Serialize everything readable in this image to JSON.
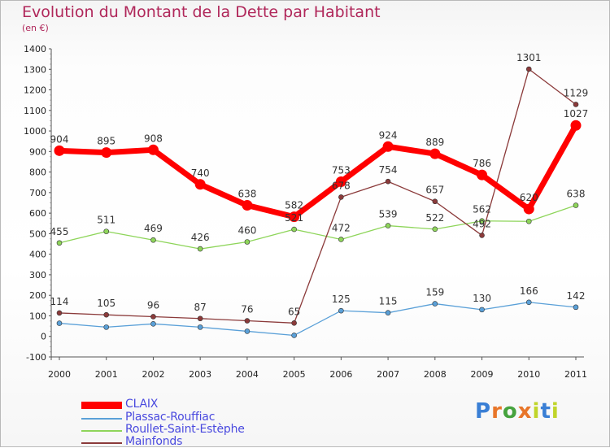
{
  "title": "Evolution du Montant de la Dette par Habitant",
  "unit": "(en €)",
  "brand": {
    "text": "Proxiti",
    "colors": [
      "#3a7fd5",
      "#e8762a",
      "#46a33e",
      "#e8762a",
      "#c0d52a",
      "#3a7fd5",
      "#c0d52a"
    ]
  },
  "chart_data": {
    "type": "line",
    "title": "Evolution du Montant de la Dette par Habitant",
    "unit": "(en €)",
    "x": [
      "2000",
      "2001",
      "2002",
      "2003",
      "2004",
      "2005",
      "2006",
      "2007",
      "2008",
      "2009",
      "2010",
      "2011"
    ],
    "ylim": [
      -100,
      1400
    ],
    "yticks": [
      "-100",
      "0",
      "100",
      "200",
      "300",
      "400",
      "500",
      "600",
      "700",
      "800",
      "900",
      "1000",
      "1100",
      "1200",
      "1300",
      "1400"
    ],
    "grid": false,
    "legend_position": "bottom",
    "series": [
      {
        "name": "CLAIX",
        "color": "#ff0000",
        "values": [
          904,
          895,
          908,
          740,
          638,
          582,
          753,
          924,
          889,
          786,
          620,
          1027
        ],
        "labels": [
          "904",
          "895",
          "908",
          "740",
          "638",
          "582",
          "753",
          "924",
          "889",
          "786",
          "620",
          "1027"
        ]
      },
      {
        "name": "Plassac-Rouffiac",
        "color": "#5aa0d8",
        "values": [
          64,
          45,
          61,
          45,
          25,
          5,
          125,
          115,
          159,
          130,
          166,
          142
        ],
        "labels": [
          "",
          "",
          "",
          "",
          "",
          "",
          "125",
          "115",
          "159",
          "130",
          "166",
          "142"
        ]
      },
      {
        "name": "Roullet-Saint-Estèphe",
        "color": "#8ed55a",
        "values": [
          455,
          511,
          469,
          426,
          460,
          521,
          472,
          539,
          522,
          562,
          560,
          638
        ],
        "labels": [
          "455",
          "511",
          "469",
          "426",
          "460",
          "521",
          "472",
          "539",
          "522",
          "562",
          "",
          "638"
        ]
      },
      {
        "name": "Mainfonds",
        "color": "#8b3a3a",
        "values": [
          114,
          105,
          96,
          87,
          76,
          65,
          678,
          754,
          657,
          492,
          1301,
          1129
        ],
        "labels": [
          "114",
          "105",
          "96",
          "87",
          "76",
          "65",
          "678",
          "754",
          "657",
          "492",
          "1301",
          "1129"
        ]
      }
    ]
  }
}
